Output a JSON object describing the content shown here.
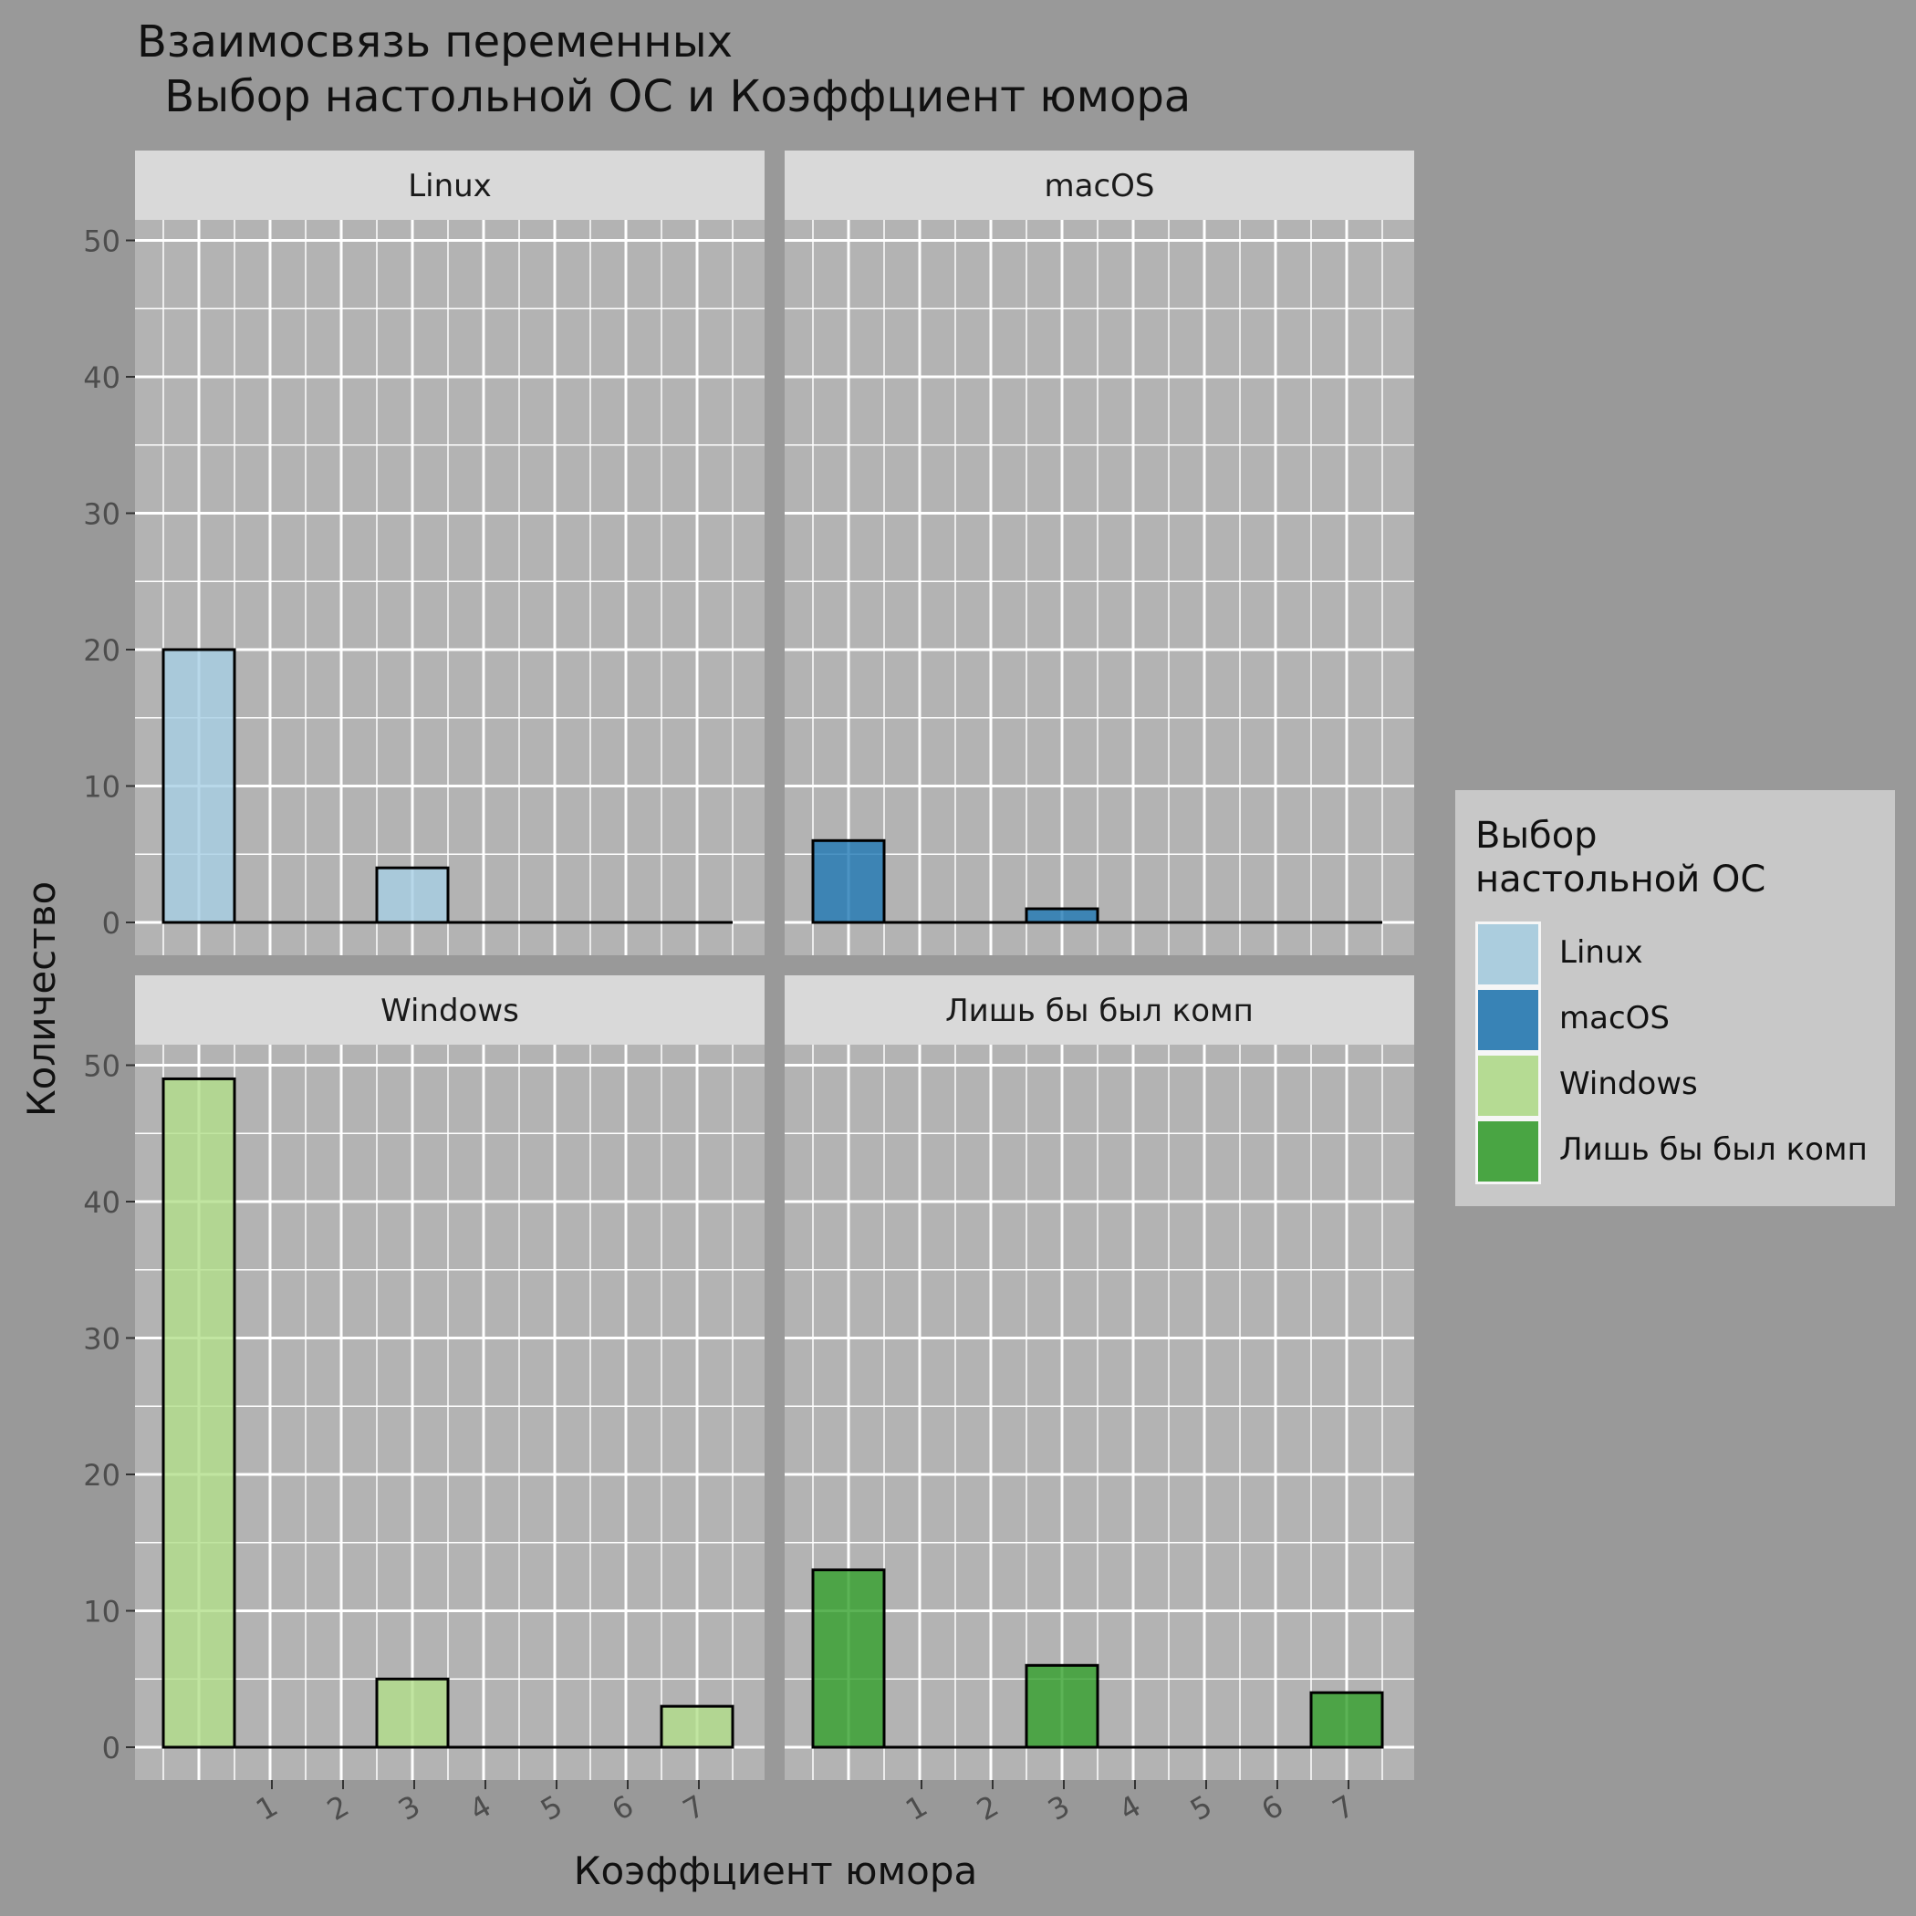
{
  "chart_data": {
    "type": "bar",
    "title_line1": "Взаимосвязь переменных",
    "title_line2": " Выбор настольной ОС и Коэффциент юмора",
    "xlabel": "Коэффциент юмора",
    "ylabel": "Количество",
    "x_ticks": [
      "1",
      "2",
      "3",
      "4",
      "5",
      "6",
      "7"
    ],
    "ylim": [
      0,
      50
    ],
    "y_ticks": [
      0,
      10,
      20,
      30,
      40,
      50
    ],
    "facets": [
      {
        "name": "Linux",
        "color": "#a6cee3",
        "bars": [
          {
            "x": 0,
            "value": 20
          },
          {
            "x": 3,
            "value": 4
          }
        ]
      },
      {
        "name": "macOS",
        "color": "#1f78b4",
        "bars": [
          {
            "x": 0,
            "value": 6
          },
          {
            "x": 3,
            "value": 1
          }
        ]
      },
      {
        "name": "Windows",
        "color": "#b2df8a",
        "bars": [
          {
            "x": 0,
            "value": 49
          },
          {
            "x": 3,
            "value": 5
          },
          {
            "x": 7,
            "value": 3
          }
        ]
      },
      {
        "name": "Лишь бы был комп",
        "color": "#33a02c",
        "bars": [
          {
            "x": 0,
            "value": 13
          },
          {
            "x": 3,
            "value": 6
          },
          {
            "x": 7,
            "value": 4
          }
        ]
      }
    ],
    "legend": {
      "title_line1": "Выбор",
      "title_line2": "настольной ОС",
      "position": "right"
    }
  }
}
